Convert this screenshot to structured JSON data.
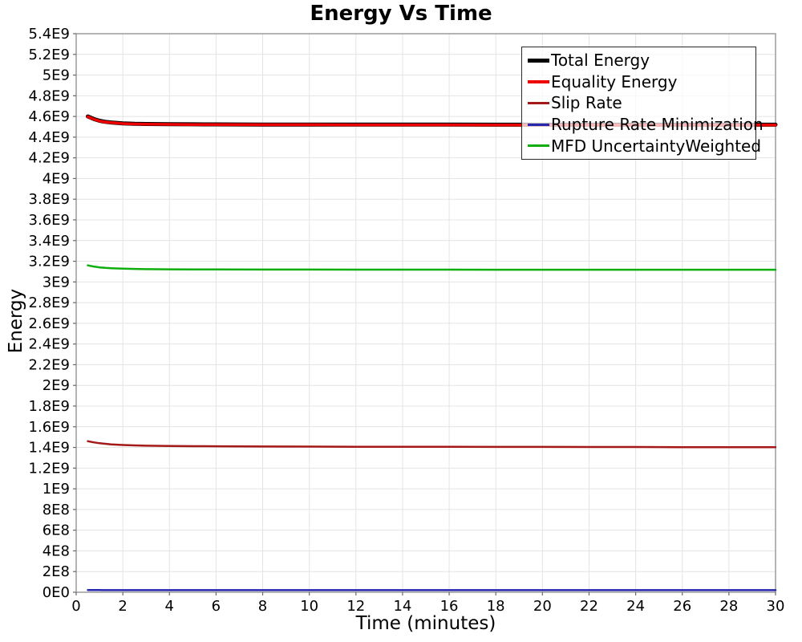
{
  "chart_data": {
    "type": "line",
    "title": "Energy Vs Time",
    "xlabel": "Time (minutes)",
    "ylabel": "Energy",
    "xlim": [
      0,
      30
    ],
    "ylim": [
      0,
      5400000000.0
    ],
    "grid": true,
    "legend_position": "top-right",
    "plot_border_color": "#9b9b9b",
    "gridline_color": "#e4e4e4",
    "tick_color": "#666666",
    "x_ticks": {
      "values": [
        0,
        2,
        4,
        6,
        8,
        10,
        12,
        14,
        16,
        18,
        20,
        22,
        24,
        26,
        28,
        30
      ],
      "labels": [
        "0",
        "2",
        "4",
        "6",
        "8",
        "10",
        "12",
        "14",
        "16",
        "18",
        "20",
        "22",
        "24",
        "26",
        "28",
        "30"
      ]
    },
    "y_ticks": {
      "values": [
        0,
        200000000.0,
        400000000.0,
        600000000.0,
        800000000.0,
        1000000000.0,
        1200000000.0,
        1400000000.0,
        1600000000.0,
        1800000000.0,
        2000000000.0,
        2200000000.0,
        2400000000.0,
        2600000000.0,
        2800000000.0,
        3000000000.0,
        3200000000.0,
        3400000000.0,
        3600000000.0,
        3800000000.0,
        4000000000.0,
        4200000000.0,
        4400000000.0,
        4600000000.0,
        4800000000.0,
        5000000000.0,
        5200000000.0,
        5400000000.0
      ],
      "labels": [
        "0E0",
        "2E8",
        "4E8",
        "6E8",
        "8E8",
        "1E9",
        "1.2E9",
        "1.4E9",
        "1.6E9",
        "1.8E9",
        "2E9",
        "2.2E9",
        "2.4E9",
        "2.6E9",
        "2.8E9",
        "3E9",
        "3.2E9",
        "3.4E9",
        "3.6E9",
        "3.8E9",
        "4E9",
        "4.2E9",
        "4.4E9",
        "4.6E9",
        "4.8E9",
        "5E9",
        "5.2E9",
        "5.4E9"
      ]
    },
    "x": [
      0.5,
      0.75,
      1,
      1.25,
      1.5,
      2,
      2.5,
      3,
      4,
      5,
      6,
      8,
      10,
      12,
      14,
      16,
      18,
      20,
      22,
      24,
      26,
      28,
      30
    ],
    "series": [
      {
        "name": "Total Energy",
        "color": "#000000",
        "line_width": 5,
        "swatch_height": 5,
        "values": [
          4600000000.0,
          4576000000.0,
          4558000000.0,
          4548000000.0,
          4542000000.0,
          4533000000.0,
          4529000000.0,
          4527000000.0,
          4525000000.0,
          4524000000.0,
          4523000000.0,
          4522000000.0,
          4522000000.0,
          4521000000.0,
          4521000000.0,
          4521000000.0,
          4520000000.0,
          4520000000.0,
          4520000000.0,
          4520000000.0,
          4520000000.0,
          4520000000.0,
          4520000000.0
        ]
      },
      {
        "name": "Equality Energy",
        "color": "#ee0000",
        "line_width": 3.5,
        "swatch_height": 4,
        "values": [
          4598000000.0,
          4574000000.0,
          4556000000.0,
          4546000000.0,
          4540000000.0,
          4531000000.0,
          4527000000.0,
          4525000000.0,
          4523000000.0,
          4522000000.0,
          4521000000.0,
          4520000000.0,
          4520000000.0,
          4519000000.0,
          4519000000.0,
          4519000000.0,
          4518000000.0,
          4518000000.0,
          4518000000.0,
          4518000000.0,
          4518000000.0,
          4518000000.0,
          4518000000.0
        ]
      },
      {
        "name": "Slip Rate",
        "color": "#a51818",
        "line_width": 2.5,
        "swatch_height": 3,
        "values": [
          1460000000.0,
          1449000000.0,
          1441000000.0,
          1435000000.0,
          1430000000.0,
          1424000000.0,
          1420000000.0,
          1417000000.0,
          1414000000.0,
          1412000000.0,
          1411000000.0,
          1409000000.0,
          1408000000.0,
          1407000000.0,
          1406000000.0,
          1406000000.0,
          1405000000.0,
          1405000000.0,
          1404000000.0,
          1404000000.0,
          1403000000.0,
          1403000000.0,
          1402000000.0
        ]
      },
      {
        "name": "Rupture Rate Minimization",
        "color": "#2626ae",
        "line_width": 2.5,
        "swatch_height": 3,
        "values": [
          22000000.0,
          21000000.0,
          21000000.0,
          20000000.0,
          20000000.0,
          20000000.0,
          20000000.0,
          20000000.0,
          20000000.0,
          20000000.0,
          20000000.0,
          20000000.0,
          20000000.0,
          20000000.0,
          20000000.0,
          20000000.0,
          20000000.0,
          20000000.0,
          20000000.0,
          20000000.0,
          20000000.0,
          20000000.0,
          20000000.0
        ]
      },
      {
        "name": "MFD UncertaintyWeighted",
        "color": "#0fae0f",
        "line_width": 2.5,
        "swatch_height": 3,
        "values": [
          3160000000.0,
          3149000000.0,
          3141000000.0,
          3136000000.0,
          3133000000.0,
          3128000000.0,
          3126000000.0,
          3124000000.0,
          3122000000.0,
          3121000000.0,
          3121000000.0,
          3120000000.0,
          3120000000.0,
          3119000000.0,
          3119000000.0,
          3119000000.0,
          3118000000.0,
          3118000000.0,
          3118000000.0,
          3118000000.0,
          3118000000.0,
          3118000000.0,
          3118000000.0
        ]
      }
    ]
  }
}
